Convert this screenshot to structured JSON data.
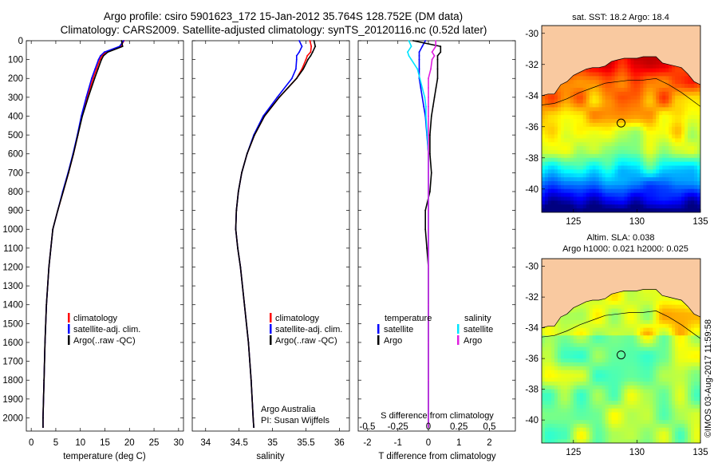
{
  "title": {
    "line1": "Argo profile: csiro 5901623_172 15-Jan-2012 35.764S 128.752E (DM data)",
    "line2": "Climatology: CARS2009. Satellite-adjusted climatology: synTS_20120116.nc (0.52d later)"
  },
  "colors": {
    "climatology": "#ff0000",
    "satellite": "#0000ff",
    "argo": "#000000",
    "salinity_satellite": "#00e5ff",
    "salinity_argo": "#e020e0",
    "land": "#f9c9a0"
  },
  "chart_data": [
    {
      "type": "line",
      "panel": "temperature",
      "xlabel": "temperature (deg C)",
      "xlim": [
        -1,
        31
      ],
      "xticks": [
        "0",
        "5",
        "10",
        "15",
        "20",
        "25",
        "30"
      ],
      "ylim": [
        2070,
        0
      ],
      "yticks": [
        "0",
        "100",
        "200",
        "300",
        "400",
        "500",
        "600",
        "700",
        "800",
        "900",
        "1000",
        "1100",
        "1200",
        "1300",
        "1400",
        "1500",
        "1600",
        "1700",
        "1800",
        "1900",
        "2000"
      ],
      "depth": [
        0,
        30,
        60,
        80,
        100,
        150,
        200,
        300,
        400,
        500,
        600,
        700,
        800,
        900,
        1000,
        1200,
        1400,
        1600,
        1800,
        2000,
        2050
      ],
      "series": [
        {
          "name": "climatology",
          "values": [
            18.9,
            18.2,
            15.2,
            14.4,
            14.0,
            13.3,
            12.6,
            11.4,
            10.3,
            9.5,
            8.6,
            7.6,
            6.5,
            5.4,
            4.4,
            3.6,
            3.1,
            2.8,
            2.6,
            2.4,
            2.4
          ]
        },
        {
          "name": "satellite-adj. clim.",
          "values": [
            18.8,
            18.0,
            14.9,
            14.1,
            13.7,
            13.0,
            12.3,
            11.2,
            10.2,
            9.4,
            8.5,
            7.5,
            6.4,
            5.4,
            4.4,
            3.6,
            3.1,
            2.8,
            2.6,
            2.4,
            2.4
          ]
        },
        {
          "name": "Argo(..raw -QC)",
          "values": [
            18.4,
            18.6,
            15.6,
            14.7,
            14.3,
            13.6,
            12.9,
            11.6,
            10.4,
            9.5,
            8.6,
            7.6,
            6.5,
            5.4,
            4.4,
            3.6,
            3.1,
            2.8,
            2.6,
            2.4,
            2.4
          ]
        }
      ]
    },
    {
      "type": "line",
      "panel": "salinity",
      "xlabel": "salinity",
      "xlim": [
        33.8,
        36.15
      ],
      "xticks": [
        "34",
        "34.5",
        "35",
        "35.5",
        "36"
      ],
      "depth": [
        0,
        30,
        60,
        80,
        100,
        150,
        200,
        300,
        400,
        500,
        600,
        700,
        800,
        900,
        1000,
        1100,
        1200,
        1400,
        1600,
        1800,
        2000,
        2050
      ],
      "series": [
        {
          "name": "climatology",
          "values": [
            35.56,
            35.58,
            35.57,
            35.52,
            35.5,
            35.44,
            35.36,
            35.1,
            34.88,
            34.73,
            34.62,
            34.54,
            34.49,
            34.46,
            34.45,
            34.48,
            34.52,
            34.58,
            34.64,
            34.68,
            34.71,
            34.72
          ]
        },
        {
          "name": "satellite-adj. clim.",
          "values": [
            35.4,
            35.44,
            35.4,
            35.36,
            35.36,
            35.35,
            35.29,
            35.07,
            34.86,
            34.72,
            34.62,
            34.54,
            34.49,
            34.46,
            34.45,
            34.48,
            34.52,
            34.58,
            34.64,
            34.68,
            34.71,
            34.72
          ]
        },
        {
          "name": "Argo(..raw -QC)",
          "values": [
            35.62,
            35.64,
            35.6,
            35.57,
            35.53,
            35.46,
            35.36,
            35.1,
            34.88,
            34.73,
            34.62,
            34.54,
            34.49,
            34.46,
            34.45,
            34.48,
            34.52,
            34.58,
            34.64,
            34.68,
            34.71,
            34.72
          ]
        }
      ],
      "annotation": [
        "Argo Australia",
        "PI: Susan Wijffels"
      ]
    },
    {
      "type": "line",
      "panel": "differences",
      "xlabel": "T difference from climatology",
      "xlabel_top": "S difference from climatology",
      "xlim": [
        -2.3,
        2.85
      ],
      "xticks": [
        "-2",
        "-1",
        "0",
        "1",
        "2"
      ],
      "s_xticks": [
        "-0.5",
        "-0.25",
        "0",
        "0.25",
        "0.5"
      ],
      "depth": [
        0,
        30,
        60,
        80,
        100,
        150,
        200,
        250,
        300,
        350,
        400,
        500,
        600,
        700,
        800,
        900,
        1000,
        1100,
        1200,
        1400,
        1600,
        1800,
        2000,
        2050
      ],
      "series": [
        {
          "name": "temperature satellite",
          "values": [
            -0.1,
            -0.2,
            -0.3,
            -0.3,
            -0.3,
            -0.3,
            -0.3,
            -0.25,
            -0.2,
            -0.15,
            -0.1,
            -0.05,
            0,
            0,
            0,
            0,
            0,
            0,
            0,
            0,
            0,
            0,
            0,
            0
          ]
        },
        {
          "name": "temperature Argo",
          "values": [
            -0.5,
            0.4,
            0.4,
            0.3,
            0.3,
            0.3,
            0.3,
            0.25,
            0.2,
            0.15,
            0.1,
            0.05,
            0.05,
            0.1,
            0.05,
            -0.1,
            -0.1,
            -0.05,
            0,
            0,
            0,
            0,
            0,
            0
          ]
        },
        {
          "name": "salinity satellite",
          "values": [
            -0.16,
            -0.14,
            -0.17,
            -0.16,
            -0.14,
            -0.09,
            -0.07,
            -0.05,
            -0.03,
            -0.02,
            -0.02,
            -0.01,
            0,
            0,
            0,
            0,
            0,
            0,
            0,
            0,
            0,
            0,
            0,
            0
          ]
        },
        {
          "name": "salinity Argo",
          "values": [
            0.06,
            0.06,
            0.03,
            0.05,
            0.03,
            0.02,
            0.0,
            0.0,
            0.0,
            0.0,
            0.0,
            0.0,
            0,
            0,
            0,
            0,
            0,
            0,
            0,
            0,
            0,
            0,
            0,
            0
          ]
        }
      ],
      "legend": {
        "temperature_header": "temperature",
        "salinity_header": "salinity",
        "satellite": "satellite",
        "argo": "Argo"
      }
    },
    {
      "type": "heatmap",
      "panel": "sst-map",
      "title": "sat. SST: 18.2 Argo: 18.4",
      "xlim": [
        122.5,
        135
      ],
      "ylim": [
        -41.5,
        -29.5
      ],
      "xticks": [
        "125",
        "130",
        "135"
      ],
      "yticks": [
        "-30",
        "-32",
        "-34",
        "-36",
        "-38",
        "-40"
      ],
      "profile_marker": {
        "lon": 128.752,
        "lat": -35.764
      }
    },
    {
      "type": "heatmap",
      "panel": "sla-map",
      "title_line1": "Altim. SLA: 0.038",
      "title_line2": "Argo h1000: 0.021 h2000: 0.025",
      "xlim": [
        122.5,
        135
      ],
      "ylim": [
        -41.5,
        -29.5
      ],
      "xticks": [
        "125",
        "130",
        "135"
      ],
      "yticks": [
        "-30",
        "-32",
        "-34",
        "-36",
        "-38",
        "-40"
      ],
      "profile_marker": {
        "lon": 128.752,
        "lat": -35.764
      }
    }
  ],
  "panel_legend": {
    "climatology": "climatology",
    "satellite": "satellite-adj. clim.",
    "argo": "Argo(..raw -QC)"
  },
  "footer": "©IMOS 03-Aug-2017 11:59:58"
}
